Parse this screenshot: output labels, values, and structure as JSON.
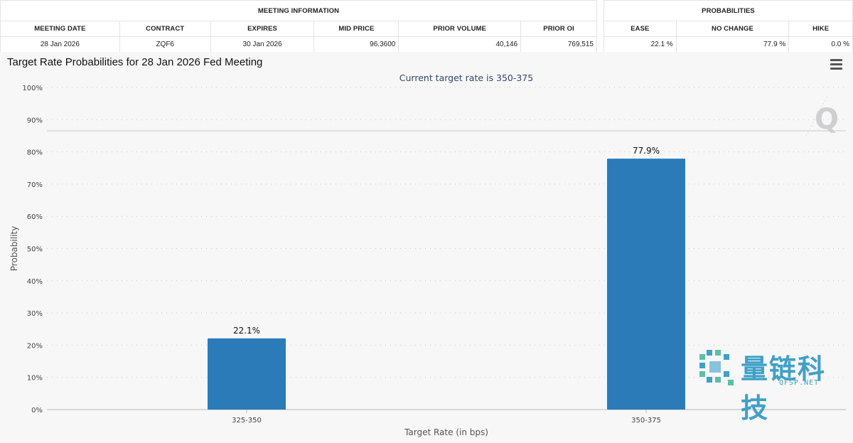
{
  "meeting_info": {
    "section_title": "MEETING INFORMATION",
    "headers": [
      "MEETING DATE",
      "CONTRACT",
      "EXPIRES",
      "MID PRICE",
      "PRIOR VOLUME",
      "PRIOR OI"
    ],
    "values": [
      "28 Jan 2026",
      "ZQF6",
      "30 Jan 2026",
      "96.3600",
      "40,146",
      "769,515"
    ]
  },
  "probabilities": {
    "section_title": "PROBABILITIES",
    "headers": [
      "EASE",
      "NO CHANGE",
      "HIKE"
    ],
    "values": [
      "22.1 %",
      "77.9 %",
      "0.0 %"
    ]
  },
  "chart": {
    "title": "Target Rate Probabilities for 28 Jan 2026 Fed Meeting",
    "menu_icon": "hamburger-menu-icon"
  },
  "watermark": {
    "logo_letter": "Q",
    "brand_text": "量链科技",
    "brand_sub": "QFSP.NET"
  },
  "colors": {
    "bar": "#2b7bb9",
    "watermark": "#3fa0c8"
  },
  "chart_data": {
    "type": "bar",
    "title": "Target Rate Probabilities for 28 Jan 2026 Fed Meeting",
    "subtitle": "Current target rate is 350-375",
    "categories": [
      "325-350",
      "350-375"
    ],
    "values": [
      22.1,
      77.9
    ],
    "data_labels": [
      "22.1%",
      "77.9%"
    ],
    "xlabel": "Target Rate (in bps)",
    "ylabel": "Probability",
    "ylim": [
      0,
      100
    ],
    "yticks": [
      0,
      10,
      20,
      30,
      40,
      50,
      60,
      70,
      80,
      90,
      100
    ],
    "ytick_labels": [
      "0%",
      "10%",
      "20%",
      "30%",
      "40%",
      "50%",
      "60%",
      "70%",
      "80%",
      "90%",
      "100%"
    ],
    "grid": true,
    "legend": "none"
  }
}
